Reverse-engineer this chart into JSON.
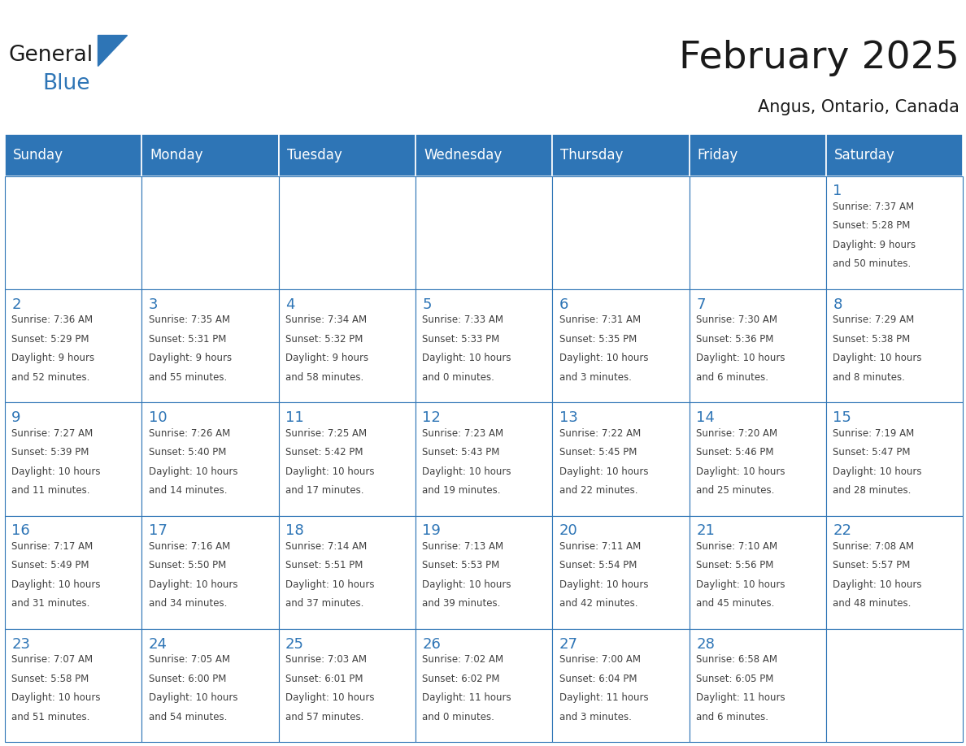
{
  "title": "February 2025",
  "subtitle": "Angus, Ontario, Canada",
  "days_of_week": [
    "Sunday",
    "Monday",
    "Tuesday",
    "Wednesday",
    "Thursday",
    "Friday",
    "Saturday"
  ],
  "header_bg": "#2E75B6",
  "header_text": "#FFFFFF",
  "cell_bg": "#FFFFFF",
  "cell_border": "#2E75B6",
  "day_number_color": "#2E75B6",
  "info_text_color": "#404040",
  "title_color": "#1a1a1a",
  "logo_general_color": "#1a1a1a",
  "logo_blue_color": "#2E75B6",
  "background_color": "#FFFFFF",
  "sep_line_color": "#AAAAAA",
  "calendar": [
    [
      null,
      null,
      null,
      null,
      null,
      null,
      1
    ],
    [
      2,
      3,
      4,
      5,
      6,
      7,
      8
    ],
    [
      9,
      10,
      11,
      12,
      13,
      14,
      15
    ],
    [
      16,
      17,
      18,
      19,
      20,
      21,
      22
    ],
    [
      23,
      24,
      25,
      26,
      27,
      28,
      null
    ]
  ],
  "cell_data": {
    "1": {
      "sunrise": "7:37 AM",
      "sunset": "5:28 PM",
      "daylight_hours": "9",
      "daylight_mins": "50"
    },
    "2": {
      "sunrise": "7:36 AM",
      "sunset": "5:29 PM",
      "daylight_hours": "9",
      "daylight_mins": "52"
    },
    "3": {
      "sunrise": "7:35 AM",
      "sunset": "5:31 PM",
      "daylight_hours": "9",
      "daylight_mins": "55"
    },
    "4": {
      "sunrise": "7:34 AM",
      "sunset": "5:32 PM",
      "daylight_hours": "9",
      "daylight_mins": "58"
    },
    "5": {
      "sunrise": "7:33 AM",
      "sunset": "5:33 PM",
      "daylight_hours": "10",
      "daylight_mins": "0"
    },
    "6": {
      "sunrise": "7:31 AM",
      "sunset": "5:35 PM",
      "daylight_hours": "10",
      "daylight_mins": "3"
    },
    "7": {
      "sunrise": "7:30 AM",
      "sunset": "5:36 PM",
      "daylight_hours": "10",
      "daylight_mins": "6"
    },
    "8": {
      "sunrise": "7:29 AM",
      "sunset": "5:38 PM",
      "daylight_hours": "10",
      "daylight_mins": "8"
    },
    "9": {
      "sunrise": "7:27 AM",
      "sunset": "5:39 PM",
      "daylight_hours": "10",
      "daylight_mins": "11"
    },
    "10": {
      "sunrise": "7:26 AM",
      "sunset": "5:40 PM",
      "daylight_hours": "10",
      "daylight_mins": "14"
    },
    "11": {
      "sunrise": "7:25 AM",
      "sunset": "5:42 PM",
      "daylight_hours": "10",
      "daylight_mins": "17"
    },
    "12": {
      "sunrise": "7:23 AM",
      "sunset": "5:43 PM",
      "daylight_hours": "10",
      "daylight_mins": "19"
    },
    "13": {
      "sunrise": "7:22 AM",
      "sunset": "5:45 PM",
      "daylight_hours": "10",
      "daylight_mins": "22"
    },
    "14": {
      "sunrise": "7:20 AM",
      "sunset": "5:46 PM",
      "daylight_hours": "10",
      "daylight_mins": "25"
    },
    "15": {
      "sunrise": "7:19 AM",
      "sunset": "5:47 PM",
      "daylight_hours": "10",
      "daylight_mins": "28"
    },
    "16": {
      "sunrise": "7:17 AM",
      "sunset": "5:49 PM",
      "daylight_hours": "10",
      "daylight_mins": "31"
    },
    "17": {
      "sunrise": "7:16 AM",
      "sunset": "5:50 PM",
      "daylight_hours": "10",
      "daylight_mins": "34"
    },
    "18": {
      "sunrise": "7:14 AM",
      "sunset": "5:51 PM",
      "daylight_hours": "10",
      "daylight_mins": "37"
    },
    "19": {
      "sunrise": "7:13 AM",
      "sunset": "5:53 PM",
      "daylight_hours": "10",
      "daylight_mins": "39"
    },
    "20": {
      "sunrise": "7:11 AM",
      "sunset": "5:54 PM",
      "daylight_hours": "10",
      "daylight_mins": "42"
    },
    "21": {
      "sunrise": "7:10 AM",
      "sunset": "5:56 PM",
      "daylight_hours": "10",
      "daylight_mins": "45"
    },
    "22": {
      "sunrise": "7:08 AM",
      "sunset": "5:57 PM",
      "daylight_hours": "10",
      "daylight_mins": "48"
    },
    "23": {
      "sunrise": "7:07 AM",
      "sunset": "5:58 PM",
      "daylight_hours": "10",
      "daylight_mins": "51"
    },
    "24": {
      "sunrise": "7:05 AM",
      "sunset": "6:00 PM",
      "daylight_hours": "10",
      "daylight_mins": "54"
    },
    "25": {
      "sunrise": "7:03 AM",
      "sunset": "6:01 PM",
      "daylight_hours": "10",
      "daylight_mins": "57"
    },
    "26": {
      "sunrise": "7:02 AM",
      "sunset": "6:02 PM",
      "daylight_hours": "11",
      "daylight_mins": "0"
    },
    "27": {
      "sunrise": "7:00 AM",
      "sunset": "6:04 PM",
      "daylight_hours": "11",
      "daylight_mins": "3"
    },
    "28": {
      "sunrise": "6:58 AM",
      "sunset": "6:05 PM",
      "daylight_hours": "11",
      "daylight_mins": "6"
    }
  },
  "figsize": [
    11.88,
    9.18
  ],
  "dpi": 100
}
